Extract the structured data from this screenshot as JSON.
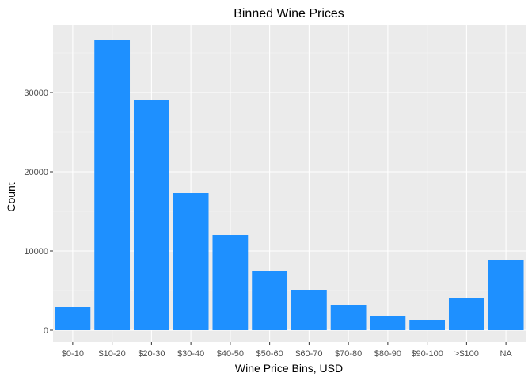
{
  "chart_data": {
    "type": "bar",
    "title": "Binned Wine Prices",
    "xlabel": "Wine Price Bins, USD",
    "ylabel": "Count",
    "categories": [
      "$0-10",
      "$10-20",
      "$20-30",
      "$30-40",
      "$40-50",
      "$50-60",
      "$60-70",
      "$70-80",
      "$80-90",
      "$90-100",
      ">$100",
      "NA"
    ],
    "values": [
      2900,
      36600,
      29100,
      17300,
      12000,
      7500,
      5100,
      3200,
      1800,
      1300,
      4000,
      8900
    ],
    "ylim": [
      0,
      38400
    ],
    "yticks": [
      0,
      10000,
      20000,
      30000
    ],
    "ytick_labels": [
      "0",
      "10000",
      "20000",
      "30000"
    ],
    "grid": true,
    "legend": "none",
    "colors": {
      "bar": "#1e90ff",
      "panel_background": "#ebebeb",
      "grid_major": "#ffffff",
      "grid_minor": "#f5f5f5",
      "tick_text": "#4d4d4d",
      "tick_mark": "#333333"
    }
  }
}
